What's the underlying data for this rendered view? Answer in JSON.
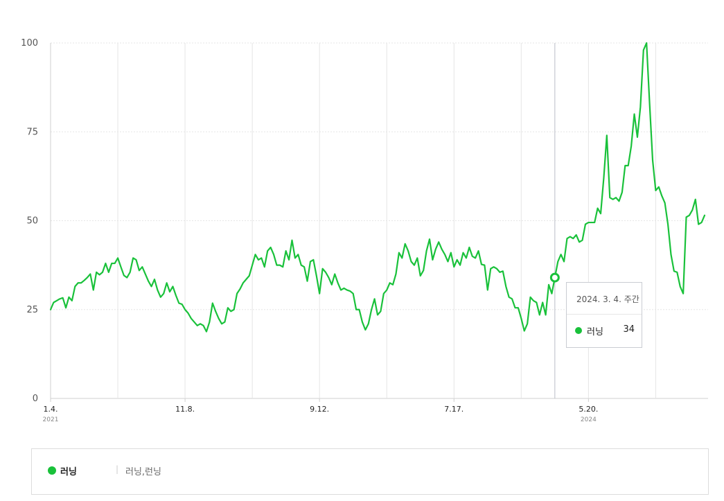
{
  "colors": {
    "series": "#19c13a",
    "grid": "#e5e5e5",
    "axis": "#cfcfcf",
    "crosshair": "#b9bdc6"
  },
  "chart_data": {
    "type": "line",
    "title": "",
    "xlabel": "",
    "ylabel": "",
    "ylim": [
      0,
      100
    ],
    "yticks": [
      0,
      25,
      50,
      75,
      100
    ],
    "grid": true,
    "x_start": "2021-01-04",
    "x_interval": "weekly",
    "xtick_labels": [
      {
        "label": "1.4.",
        "year": "2021",
        "index": 0
      },
      {
        "label": "11.8.",
        "index": 44
      },
      {
        "label": "9.12.",
        "index": 88
      },
      {
        "label": "7.17.",
        "index": 132
      },
      {
        "label": "5.20.",
        "year": "2024",
        "index": 176
      }
    ],
    "series": [
      {
        "name": "러닝",
        "values": [
          25,
          27,
          27.5,
          28,
          28.3,
          25.5,
          28.5,
          27.5,
          31.5,
          32.5,
          32.5,
          33.2,
          34,
          35,
          30.5,
          35.5,
          34.8,
          35.5,
          38,
          35.5,
          38,
          38,
          39.5,
          37,
          34.6,
          34,
          35.5,
          39.5,
          39,
          36,
          37,
          35,
          33,
          31.5,
          33.5,
          30.5,
          28.5,
          29.5,
          32.5,
          30,
          31.5,
          29,
          26.8,
          26.5,
          25,
          24,
          22.5,
          21.5,
          20.5,
          21,
          20.5,
          18.8,
          21.5,
          26.8,
          24.5,
          22.5,
          21,
          21.5,
          25.5,
          24.5,
          25,
          29.5,
          30.8,
          32.5,
          33.5,
          34.5,
          37.5,
          40.5,
          39,
          39.5,
          37,
          41.5,
          42.5,
          40.5,
          37.5,
          37.5,
          37,
          41.5,
          39,
          44.5,
          39.5,
          40.5,
          37.5,
          37,
          33,
          38.5,
          39,
          34.5,
          29.5,
          36.5,
          35.5,
          34,
          32,
          35,
          32.5,
          30.5,
          31,
          30.5,
          30.2,
          29.5,
          25,
          25,
          21.5,
          19.3,
          21,
          25,
          28,
          23.5,
          24.5,
          29.5,
          30.5,
          32.5,
          32,
          35,
          41,
          39.5,
          43.5,
          41.5,
          38.5,
          37.5,
          39.5,
          34.5,
          36,
          41.5,
          44.8,
          39,
          42,
          44,
          42,
          40.5,
          38.5,
          41,
          37,
          39,
          37.5,
          41,
          39.5,
          42.5,
          40,
          39.5,
          41.5,
          37.7,
          37.5,
          30.5,
          36.5,
          37,
          36.5,
          35.5,
          35.8,
          31.5,
          28.5,
          28,
          25.5,
          25.5,
          22.5,
          19,
          21,
          28.5,
          27.5,
          27,
          23.5,
          27,
          23.5,
          32,
          29.5,
          34,
          38.5,
          40.5,
          38.5,
          45,
          45.5,
          45,
          46,
          44,
          44.5,
          49,
          49.5,
          49.5,
          49.5,
          53.5,
          52,
          62,
          74,
          56.5,
          56,
          56.5,
          55.5,
          58,
          65.5,
          65.5,
          71,
          80,
          73.5,
          82,
          98,
          100,
          83,
          67,
          58.5,
          59.5,
          57,
          55,
          49,
          40.5,
          35.8,
          35.5,
          31.5,
          29.5,
          51,
          51.5,
          53,
          56,
          49,
          49.5,
          51.5
        ]
      }
    ],
    "highlight": {
      "date": "2024. 3. 4. 주간",
      "index": 165,
      "series": "러닝",
      "value": 34
    }
  },
  "tooltip": {
    "date": "2024. 3. 4. 주간",
    "name": "러닝",
    "value": "34"
  },
  "legend": {
    "name": "러닝",
    "separator": "|",
    "keywords": "러닝,런닝"
  }
}
